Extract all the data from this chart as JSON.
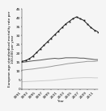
{
  "years": [
    1991,
    1992,
    1993,
    1994,
    1995,
    1996,
    1997,
    1998,
    1999,
    2000,
    2001,
    2002,
    2003,
    2004,
    2005,
    2006,
    2007,
    2008,
    2009,
    2010,
    2011,
    2012
  ],
  "scotland_male": [
    15.5,
    16.0,
    17.0,
    18.5,
    20.5,
    22.5,
    24.5,
    26.5,
    28.5,
    30.5,
    32.5,
    34.5,
    36.5,
    38.0,
    39.5,
    40.5,
    39.5,
    38.5,
    36.5,
    34.5,
    33.0,
    32.0
  ],
  "scotland_female": [
    15.0,
    15.2,
    15.5,
    15.8,
    16.0,
    16.2,
    16.5,
    16.8,
    17.0,
    17.2,
    17.0,
    17.2,
    17.5,
    17.5,
    17.5,
    17.5,
    17.3,
    17.3,
    17.0,
    16.8,
    16.5,
    16.5
  ],
  "ew_male": [
    10.5,
    10.8,
    11.0,
    11.2,
    11.5,
    11.8,
    12.0,
    12.3,
    12.6,
    13.0,
    13.3,
    13.6,
    14.0,
    14.3,
    14.5,
    14.8,
    15.0,
    15.2,
    15.5,
    15.5,
    15.5,
    15.8
  ],
  "ew_female": [
    4.0,
    4.1,
    4.2,
    4.3,
    4.4,
    4.5,
    4.6,
    4.7,
    4.8,
    5.0,
    5.2,
    5.4,
    5.6,
    5.8,
    6.0,
    6.1,
    6.2,
    6.3,
    6.3,
    6.3,
    6.2,
    6.2
  ],
  "scotland_male_color": "#1a1a1a",
  "scotland_female_color": "#555555",
  "ew_male_color": "#999999",
  "ew_female_color": "#cccccc",
  "ylabel": "European age-standardised mortality rate per\n100,000 per year",
  "xlabel": "Year",
  "ylim": [
    0,
    45
  ],
  "yticks": [
    0,
    5,
    10,
    15,
    20,
    25,
    30,
    35,
    40,
    45
  ],
  "xtick_years": [
    1991,
    1993,
    1995,
    1997,
    1999,
    2001,
    2003,
    2005,
    2007,
    2009,
    2011
  ],
  "background_color": "#f5f5f5",
  "tick_fontsize": 3.2,
  "label_fontsize": 3.0
}
